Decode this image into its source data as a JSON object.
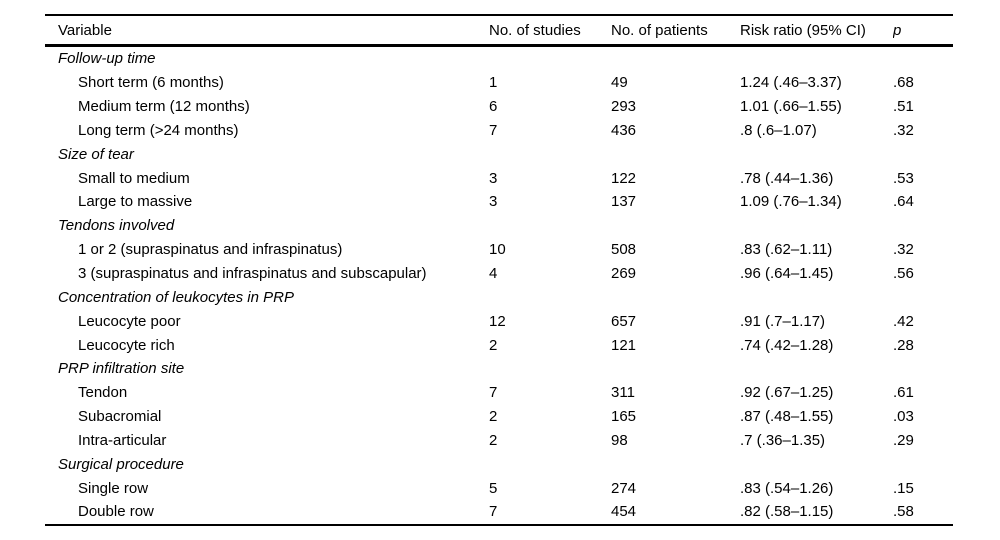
{
  "table": {
    "columns": [
      "Variable",
      "No. of studies",
      "No. of patients",
      "Risk ratio (95% CI)",
      "p"
    ],
    "sections": [
      {
        "header": "Follow-up time",
        "rows": [
          {
            "variable": "Short term (6 months)",
            "studies": "1",
            "patients": "49",
            "risk_ratio": "1.24 (.46–3.37)",
            "p": ".68"
          },
          {
            "variable": "Medium term (12 months)",
            "studies": "6",
            "patients": "293",
            "risk_ratio": "1.01 (.66–1.55)",
            "p": ".51"
          },
          {
            "variable": "Long term (>24 months)",
            "studies": "7",
            "patients": "436",
            "risk_ratio": ".8 (.6–1.07)",
            "p": ".32"
          }
        ]
      },
      {
        "header": "Size of tear",
        "rows": [
          {
            "variable": "Small to medium",
            "studies": "3",
            "patients": "122",
            "risk_ratio": ".78 (.44–1.36)",
            "p": ".53"
          },
          {
            "variable": "Large to massive",
            "studies": "3",
            "patients": "137",
            "risk_ratio": "1.09 (.76–1.34)",
            "p": ".64"
          }
        ]
      },
      {
        "header": "Tendons involved",
        "rows": [
          {
            "variable": "1 or 2 (supraspinatus and infraspinatus)",
            "studies": "10",
            "patients": "508",
            "risk_ratio": ".83 (.62–1.11)",
            "p": ".32"
          },
          {
            "variable": "3 (supraspinatus and infraspinatus and subscapular)",
            "studies": "4",
            "patients": "269",
            "risk_ratio": ".96 (.64–1.45)",
            "p": ".56"
          }
        ]
      },
      {
        "header": "Concentration of leukocytes in PRP",
        "rows": [
          {
            "variable": "Leucocyte poor",
            "studies": "12",
            "patients": "657",
            "risk_ratio": ".91 (.7–1.17)",
            "p": ".42"
          },
          {
            "variable": "Leucocyte rich",
            "studies": "2",
            "patients": "121",
            "risk_ratio": ".74 (.42–1.28)",
            "p": ".28"
          }
        ]
      },
      {
        "header": "PRP infiltration site",
        "rows": [
          {
            "variable": "Tendon",
            "studies": "7",
            "patients": "311",
            "risk_ratio": ".92 (.67–1.25)",
            "p": ".61"
          },
          {
            "variable": "Subacromial",
            "studies": "2",
            "patients": "165",
            "risk_ratio": ".87 (.48–1.55)",
            "p": ".03"
          },
          {
            "variable": "Intra-articular",
            "studies": "2",
            "patients": "98",
            "risk_ratio": ".7 (.36–1.35)",
            "p": ".29"
          }
        ]
      },
      {
        "header": "Surgical procedure",
        "rows": [
          {
            "variable": "Single row",
            "studies": "5",
            "patients": "274",
            "risk_ratio": ".83 (.54–1.26)",
            "p": ".15"
          },
          {
            "variable": "Double row",
            "studies": "7",
            "patients": "454",
            "risk_ratio": ".82 (.58–1.15)",
            "p": ".58"
          }
        ]
      }
    ]
  }
}
